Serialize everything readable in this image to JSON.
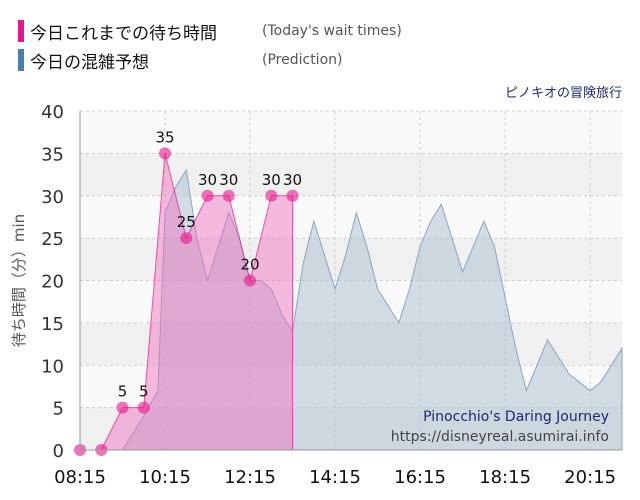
{
  "legend": [
    {
      "label": "今日これまでの待ち時間",
      "note": "(Today's wait times)",
      "color": "#e8168c"
    },
    {
      "label": "今日の混雑予想",
      "note": "(Prediction)",
      "color": "#4a7fb0"
    }
  ],
  "attraction_jp": "ピノキオの冒険旅行",
  "watermark": {
    "title": "Pinocchio's Daring Journey",
    "url": "https://disneyreal.asumirai.info"
  },
  "chart_data": {
    "type": "area",
    "ylabel": "待ち時間（分）min",
    "ylim": [
      0,
      40
    ],
    "yticks": [
      0,
      5,
      10,
      15,
      20,
      25,
      30,
      35,
      40
    ],
    "xlim": [
      "08:15",
      "21:00"
    ],
    "xticks": [
      "08:15",
      "10:15",
      "12:15",
      "14:15",
      "16:15",
      "18:15",
      "20:15"
    ],
    "series": [
      {
        "name": "今日の混雑予想",
        "color": "#9fb8cc",
        "x": [
          "08:15",
          "08:45",
          "09:15",
          "09:45",
          "10:05",
          "10:15",
          "10:30",
          "10:45",
          "11:00",
          "11:15",
          "11:30",
          "11:45",
          "12:00",
          "12:15",
          "12:30",
          "12:45",
          "13:00",
          "13:15",
          "13:30",
          "13:45",
          "14:00",
          "14:15",
          "14:30",
          "14:45",
          "15:00",
          "15:15",
          "15:30",
          "15:45",
          "16:00",
          "16:15",
          "16:30",
          "16:45",
          "17:00",
          "17:15",
          "17:30",
          "17:45",
          "18:00",
          "18:15",
          "18:30",
          "18:45",
          "19:00",
          "19:15",
          "19:30",
          "19:45",
          "20:00",
          "20:15",
          "20:30",
          "20:45",
          "21:00"
        ],
        "values": [
          0,
          0,
          0,
          4,
          7,
          28,
          31,
          33,
          25,
          20,
          24,
          28,
          25,
          20,
          20,
          19,
          16,
          14,
          22,
          27,
          23,
          19,
          23,
          28,
          24,
          19,
          17,
          15,
          19,
          24,
          27,
          29,
          25,
          21,
          24,
          27,
          24,
          18,
          12,
          7,
          10,
          13,
          11,
          9,
          8,
          7,
          8,
          10,
          12
        ]
      },
      {
        "name": "今日これまでの待ち時間",
        "color": "#e8168c",
        "x": [
          "08:15",
          "08:45",
          "09:15",
          "09:45",
          "10:15",
          "10:45",
          "11:15",
          "11:45",
          "12:15",
          "12:45",
          "13:15"
        ],
        "values": [
          0,
          0,
          5,
          5,
          35,
          25,
          30,
          30,
          20,
          30,
          30
        ]
      }
    ]
  }
}
